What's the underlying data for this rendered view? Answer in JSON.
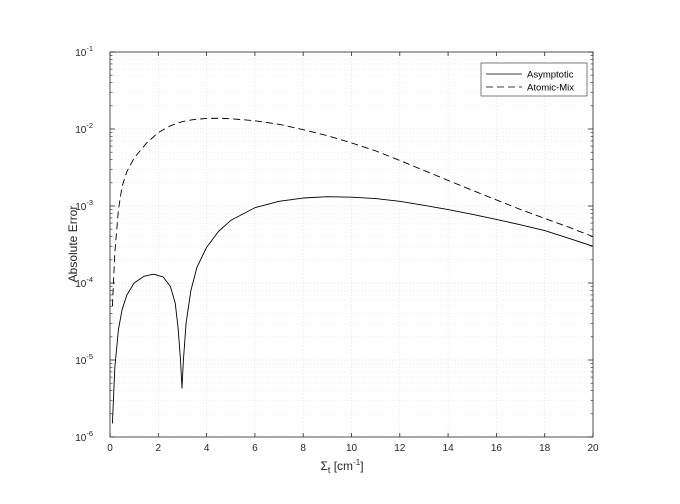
{
  "chart_data": {
    "type": "line",
    "title": "",
    "xlabel": "Σ",
    "xlabel_sub": "t",
    "xlabel_unit_prefix": " [cm",
    "xlabel_unit_exp": "-1",
    "xlabel_unit_suffix": "]",
    "ylabel": "Absolute Error",
    "xlim": [
      0,
      20
    ],
    "ylim": [
      1e-06,
      0.1
    ],
    "yscale": "log",
    "grid": true,
    "minor_grid": true,
    "legend_position": "top-right",
    "x_ticks": [
      0,
      2,
      4,
      6,
      8,
      10,
      12,
      14,
      16,
      18,
      20
    ],
    "x_tick_labels": [
      "0",
      "2",
      "4",
      "6",
      "8",
      "10",
      "12",
      "14",
      "16",
      "18",
      "20"
    ],
    "y_tick_exponents": [
      -6,
      -5,
      -4,
      -3,
      -2,
      -1
    ],
    "y_tick_base": "10",
    "series": [
      {
        "name": "Asymptotic",
        "style": "solid",
        "color": "#000000",
        "points": [
          [
            0.1,
            1.5e-06
          ],
          [
            0.2,
            8e-06
          ],
          [
            0.35,
            2.5e-05
          ],
          [
            0.5,
            4.5e-05
          ],
          [
            0.7,
            7e-05
          ],
          [
            1.0,
            0.0001
          ],
          [
            1.4,
            0.000122
          ],
          [
            1.8,
            0.00013
          ],
          [
            2.2,
            0.00012
          ],
          [
            2.5,
            9e-05
          ],
          [
            2.7,
            5.5e-05
          ],
          [
            2.82,
            2.6e-05
          ],
          [
            2.92,
            1e-05
          ],
          [
            2.98,
            4.3e-06
          ],
          [
            3.04,
            1e-05
          ],
          [
            3.15,
            3e-05
          ],
          [
            3.35,
            8e-05
          ],
          [
            3.6,
            0.00016
          ],
          [
            4.0,
            0.00029
          ],
          [
            4.5,
            0.00047
          ],
          [
            5.0,
            0.00065
          ],
          [
            6.0,
            0.00095
          ],
          [
            7.0,
            0.00115
          ],
          [
            8.0,
            0.00127
          ],
          [
            9.0,
            0.00132
          ],
          [
            10.0,
            0.0013
          ],
          [
            11.0,
            0.00125
          ],
          [
            12.0,
            0.00115
          ],
          [
            13.0,
            0.00102
          ],
          [
            14.0,
            0.0009
          ],
          [
            15.0,
            0.00078
          ],
          [
            16.0,
            0.00067
          ],
          [
            17.0,
            0.00057
          ],
          [
            18.0,
            0.00048
          ],
          [
            19.0,
            0.00038
          ],
          [
            20.0,
            0.0003
          ]
        ]
      },
      {
        "name": "Atomic-Mix",
        "style": "dashed",
        "color": "#000000",
        "points": [
          [
            0.1,
            5e-05
          ],
          [
            0.2,
            0.00025
          ],
          [
            0.35,
            0.0009
          ],
          [
            0.5,
            0.0018
          ],
          [
            0.7,
            0.0028
          ],
          [
            1.0,
            0.0042
          ],
          [
            1.5,
            0.0065
          ],
          [
            2.0,
            0.009
          ],
          [
            2.5,
            0.011
          ],
          [
            3.0,
            0.0125
          ],
          [
            3.5,
            0.0133
          ],
          [
            4.0,
            0.0137
          ],
          [
            4.5,
            0.0138
          ],
          [
            5.0,
            0.0136
          ],
          [
            6.0,
            0.0128
          ],
          [
            7.0,
            0.0115
          ],
          [
            8.0,
            0.0098
          ],
          [
            9.0,
            0.0082
          ],
          [
            10.0,
            0.0066
          ],
          [
            11.0,
            0.0052
          ],
          [
            12.0,
            0.0039
          ],
          [
            13.0,
            0.0029
          ],
          [
            14.0,
            0.00215
          ],
          [
            15.0,
            0.0016
          ],
          [
            16.0,
            0.0012
          ],
          [
            17.0,
            0.0009
          ],
          [
            18.0,
            0.00069
          ],
          [
            19.0,
            0.00053
          ],
          [
            20.0,
            0.0004
          ]
        ]
      }
    ]
  }
}
